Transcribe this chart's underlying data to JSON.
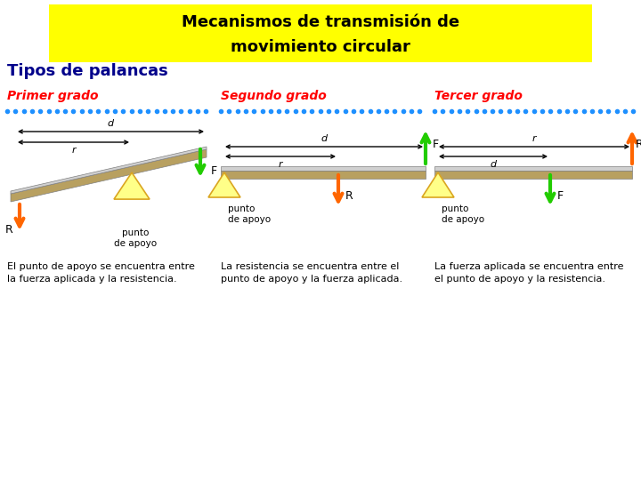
{
  "title_line1": "Mecanismos de transmisión de",
  "title_line2": "movimiento circular",
  "title_bg": "#FFFF00",
  "title_color": "#000000",
  "subtitle": "Tipos de palancas",
  "subtitle_color": "#00008B",
  "grades": [
    "Primer grado",
    "Segundo grado",
    "Tercer grado"
  ],
  "grade_color": "#FF0000",
  "desc_texts": [
    "El punto de apoyo se encuentra entre\nla fuerza aplicada y la resistencia.",
    "La resistencia se encuentra entre el\npunto de apoyo y la fuerza aplicada.",
    "La fuerza aplicada se encuentra entre\nel punto de apoyo y la resistencia."
  ],
  "bg_color": "#FFFFFF",
  "dot_color": "#1E90FF",
  "lever_color_top": "#D0D0D0",
  "lever_color_bottom": "#B8A060",
  "lever_color_edge": "#808080",
  "arrow_green": "#22CC00",
  "arrow_orange": "#FF6600",
  "fulcrum_color_top": "#FFFF88",
  "fulcrum_color_edge": "#DAA520"
}
